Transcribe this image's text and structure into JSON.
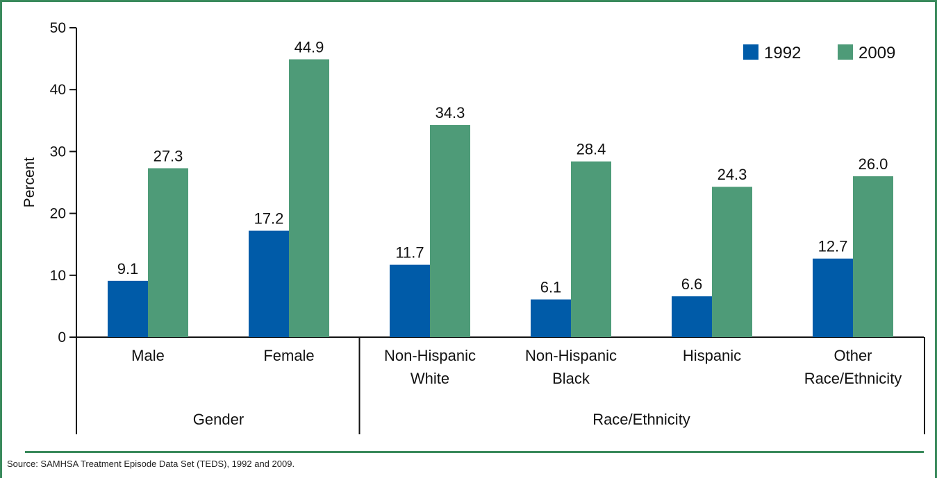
{
  "chart_data": {
    "type": "bar",
    "ylabel": "Percent",
    "ylim": [
      0,
      50
    ],
    "yticks": [
      0,
      10,
      20,
      30,
      40,
      50
    ],
    "categories": [
      [
        "Male"
      ],
      [
        "Female"
      ],
      [
        "Non-Hispanic",
        "White"
      ],
      [
        "Non-Hispanic",
        "Black"
      ],
      [
        "Hispanic"
      ],
      [
        "Other",
        "Race/Ethnicity"
      ]
    ],
    "groups": [
      {
        "label": "Gender",
        "categories": [
          0,
          1
        ]
      },
      {
        "label": "Race/Ethnicity",
        "categories": [
          2,
          3,
          4,
          5
        ]
      }
    ],
    "series": [
      {
        "name": "1992",
        "color": "#005ba8",
        "values": [
          9.1,
          17.2,
          11.7,
          6.1,
          6.6,
          12.7
        ],
        "labels": [
          "9.1",
          "17.2",
          "11.7",
          "6.1",
          "6.6",
          "12.7"
        ]
      },
      {
        "name": "2009",
        "color": "#4e9b78",
        "values": [
          27.3,
          44.9,
          34.3,
          28.4,
          24.3,
          26.0
        ],
        "labels": [
          "27.3",
          "44.9",
          "34.3",
          "28.4",
          "24.3",
          "26.0"
        ]
      }
    ],
    "legend_position": "top-right",
    "grid": false
  },
  "source": "Source: SAMHSA Treatment Episode Data Set (TEDS), 1992 and 2009."
}
